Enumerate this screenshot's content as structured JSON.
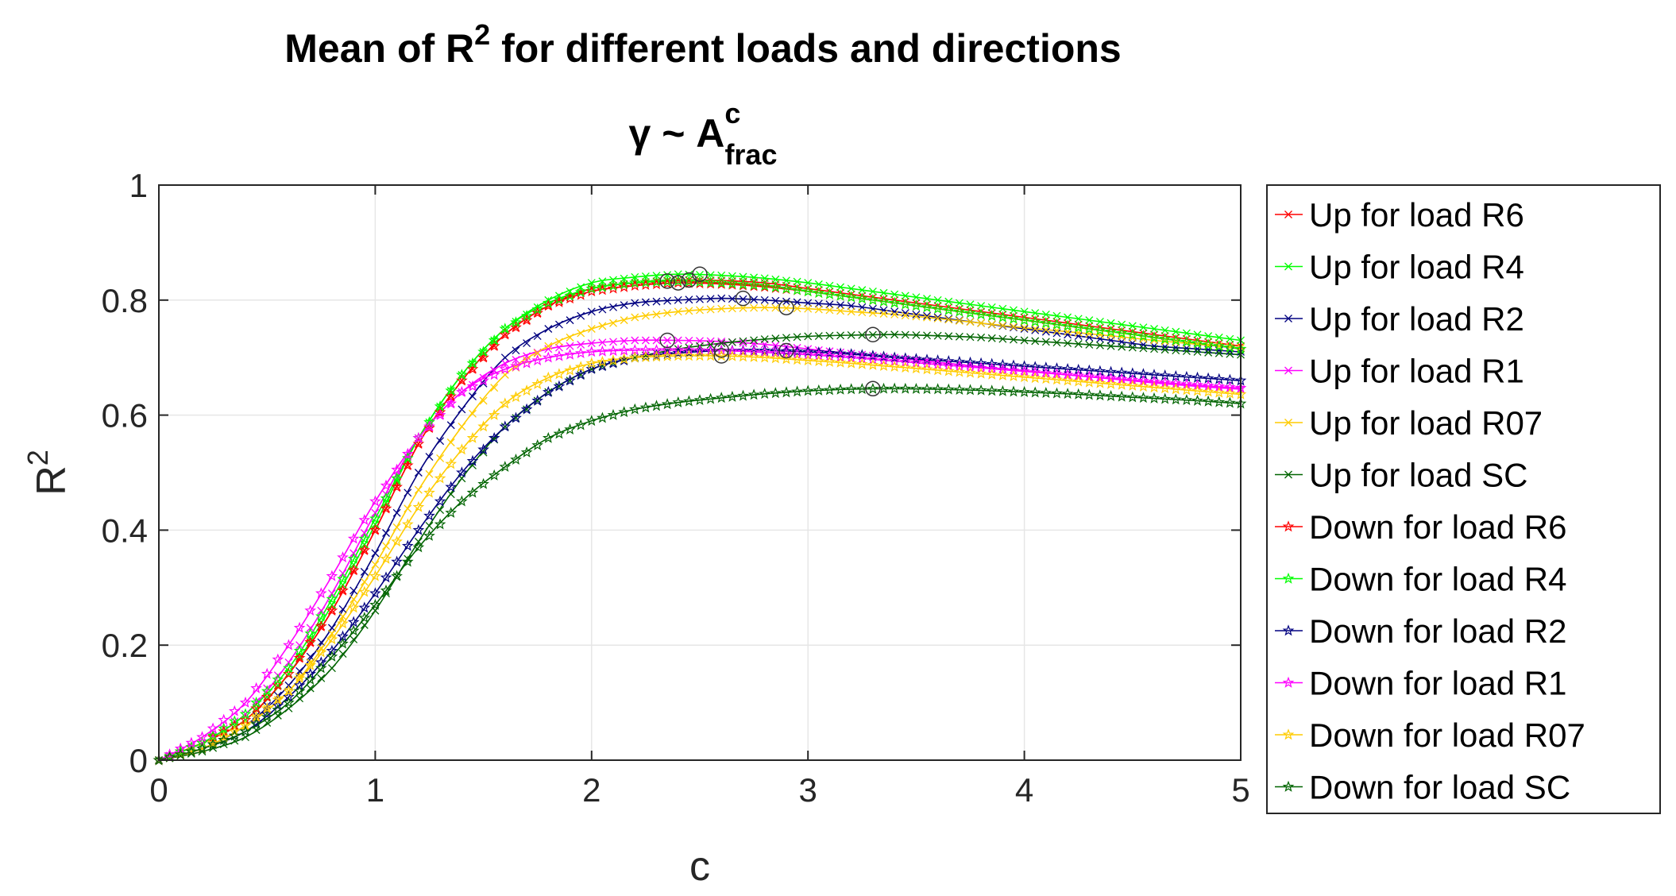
{
  "chart_data": {
    "type": "line",
    "title": {
      "line1_prefix": "Mean of R",
      "line1_sup": "2",
      "line1_suffix": " for different loads and directions",
      "line2_prefix": "γ ~ A",
      "line2_sup": "c",
      "line2_sub": "frac"
    },
    "xlabel": "c",
    "ylabel": {
      "base": "R",
      "sup": "2"
    },
    "xlim": [
      0,
      5
    ],
    "ylim": [
      0,
      1
    ],
    "x_ticks": [
      0,
      1,
      2,
      3,
      4,
      5
    ],
    "x_tick_labels": [
      "0",
      "1",
      "2",
      "3",
      "4",
      "5"
    ],
    "y_ticks": [
      0,
      0.2,
      0.4,
      0.6,
      0.8,
      1
    ],
    "y_tick_labels": [
      "0",
      "0.2",
      "0.4",
      "0.6",
      "0.8",
      "1"
    ],
    "grid": true,
    "legend_position": "outside-right",
    "x": [
      0,
      0.2,
      0.4,
      0.6,
      0.8,
      1.0,
      1.2,
      1.4,
      1.6,
      1.8,
      2.0,
      2.2,
      2.4,
      2.6,
      2.8,
      3.0,
      3.2,
      3.4,
      3.6,
      3.8,
      4.0,
      4.2,
      4.4,
      4.6,
      4.8,
      5.0
    ],
    "series": [
      {
        "name": "Up for load R6",
        "color": "#ff0000",
        "marker": "x",
        "values": [
          0,
          0.03,
          0.07,
          0.15,
          0.26,
          0.4,
          0.55,
          0.66,
          0.74,
          0.79,
          0.82,
          0.83,
          0.835,
          0.834,
          0.83,
          0.82,
          0.81,
          0.8,
          0.79,
          0.78,
          0.77,
          0.76,
          0.75,
          0.74,
          0.73,
          0.72
        ],
        "max_point": [
          2.45,
          0.835
        ]
      },
      {
        "name": "Up for load R4",
        "color": "#00ff00",
        "marker": "x",
        "values": [
          0,
          0.03,
          0.07,
          0.15,
          0.27,
          0.41,
          0.56,
          0.67,
          0.75,
          0.8,
          0.83,
          0.84,
          0.845,
          0.843,
          0.838,
          0.83,
          0.82,
          0.81,
          0.8,
          0.79,
          0.78,
          0.77,
          0.76,
          0.75,
          0.74,
          0.73
        ],
        "max_point": [
          2.5,
          0.845
        ]
      },
      {
        "name": "Up for load R2",
        "color": "#000080",
        "marker": "x",
        "values": [
          0,
          0.02,
          0.06,
          0.13,
          0.23,
          0.36,
          0.5,
          0.61,
          0.7,
          0.75,
          0.78,
          0.795,
          0.8,
          0.803,
          0.8,
          0.795,
          0.79,
          0.78,
          0.77,
          0.76,
          0.75,
          0.74,
          0.73,
          0.72,
          0.715,
          0.71
        ],
        "max_point": [
          2.7,
          0.803
        ]
      },
      {
        "name": "Up for load R1",
        "color": "#ff00ff",
        "marker": "x",
        "values": [
          0,
          0.03,
          0.08,
          0.17,
          0.29,
          0.43,
          0.56,
          0.64,
          0.69,
          0.715,
          0.725,
          0.73,
          0.73,
          0.728,
          0.723,
          0.715,
          0.707,
          0.7,
          0.692,
          0.684,
          0.677,
          0.67,
          0.663,
          0.656,
          0.65,
          0.645
        ],
        "max_point": [
          2.35,
          0.73
        ]
      },
      {
        "name": "Up for load R07",
        "color": "#ffcc00",
        "marker": "x",
        "values": [
          0,
          0.02,
          0.06,
          0.12,
          0.22,
          0.34,
          0.47,
          0.58,
          0.67,
          0.72,
          0.75,
          0.77,
          0.78,
          0.785,
          0.787,
          0.785,
          0.78,
          0.775,
          0.768,
          0.76,
          0.752,
          0.745,
          0.738,
          0.73,
          0.723,
          0.717
        ],
        "max_point": [
          2.9,
          0.787
        ]
      },
      {
        "name": "Up for load SC",
        "color": "#006400",
        "marker": "x",
        "values": [
          0,
          0.015,
          0.04,
          0.09,
          0.16,
          0.26,
          0.38,
          0.49,
          0.58,
          0.64,
          0.68,
          0.7,
          0.715,
          0.725,
          0.732,
          0.737,
          0.739,
          0.74,
          0.738,
          0.735,
          0.73,
          0.725,
          0.72,
          0.715,
          0.71,
          0.705
        ],
        "max_point": [
          3.3,
          0.74
        ]
      },
      {
        "name": "Down for load R6",
        "color": "#ff0000",
        "marker": "pentagram",
        "values": [
          0,
          0.03,
          0.07,
          0.15,
          0.26,
          0.4,
          0.55,
          0.66,
          0.74,
          0.79,
          0.815,
          0.825,
          0.83,
          0.828,
          0.823,
          0.815,
          0.805,
          0.795,
          0.785,
          0.775,
          0.765,
          0.755,
          0.745,
          0.735,
          0.725,
          0.715
        ],
        "max_point": [
          2.4,
          0.83
        ]
      },
      {
        "name": "Down for load R4",
        "color": "#00ff00",
        "marker": "pentagram",
        "values": [
          0,
          0.03,
          0.08,
          0.16,
          0.28,
          0.42,
          0.56,
          0.67,
          0.75,
          0.795,
          0.82,
          0.83,
          0.833,
          0.83,
          0.825,
          0.815,
          0.805,
          0.795,
          0.785,
          0.775,
          0.765,
          0.755,
          0.745,
          0.735,
          0.725,
          0.715
        ],
        "max_point": [
          2.35,
          0.833
        ]
      },
      {
        "name": "Down for load R2",
        "color": "#000080",
        "marker": "pentagram",
        "values": [
          0,
          0.02,
          0.05,
          0.11,
          0.19,
          0.29,
          0.4,
          0.5,
          0.58,
          0.64,
          0.68,
          0.7,
          0.708,
          0.712,
          0.712,
          0.71,
          0.706,
          0.7,
          0.695,
          0.69,
          0.685,
          0.68,
          0.675,
          0.67,
          0.665,
          0.66
        ],
        "max_point": [
          2.9,
          0.712
        ]
      },
      {
        "name": "Down for load R1",
        "color": "#ff00ff",
        "marker": "pentagram",
        "values": [
          0,
          0.04,
          0.1,
          0.2,
          0.32,
          0.45,
          0.56,
          0.64,
          0.68,
          0.7,
          0.71,
          0.713,
          0.713,
          0.712,
          0.709,
          0.705,
          0.7,
          0.694,
          0.688,
          0.682,
          0.676,
          0.67,
          0.664,
          0.658,
          0.652,
          0.647
        ],
        "max_point": [
          2.6,
          0.713
        ]
      },
      {
        "name": "Down for load R07",
        "color": "#ffcc00",
        "marker": "pentagram",
        "values": [
          0,
          0.02,
          0.06,
          0.12,
          0.21,
          0.32,
          0.44,
          0.54,
          0.62,
          0.665,
          0.69,
          0.7,
          0.703,
          0.703,
          0.7,
          0.695,
          0.69,
          0.684,
          0.678,
          0.672,
          0.666,
          0.66,
          0.654,
          0.648,
          0.642,
          0.636
        ],
        "max_point": [
          2.6,
          0.703
        ]
      },
      {
        "name": "Down for load SC",
        "color": "#006400",
        "marker": "pentagram",
        "values": [
          0,
          0.02,
          0.05,
          0.1,
          0.18,
          0.27,
          0.37,
          0.45,
          0.51,
          0.56,
          0.59,
          0.61,
          0.622,
          0.63,
          0.637,
          0.642,
          0.645,
          0.646,
          0.645,
          0.643,
          0.64,
          0.637,
          0.633,
          0.629,
          0.625,
          0.62
        ],
        "max_point": [
          3.3,
          0.646
        ]
      }
    ]
  }
}
